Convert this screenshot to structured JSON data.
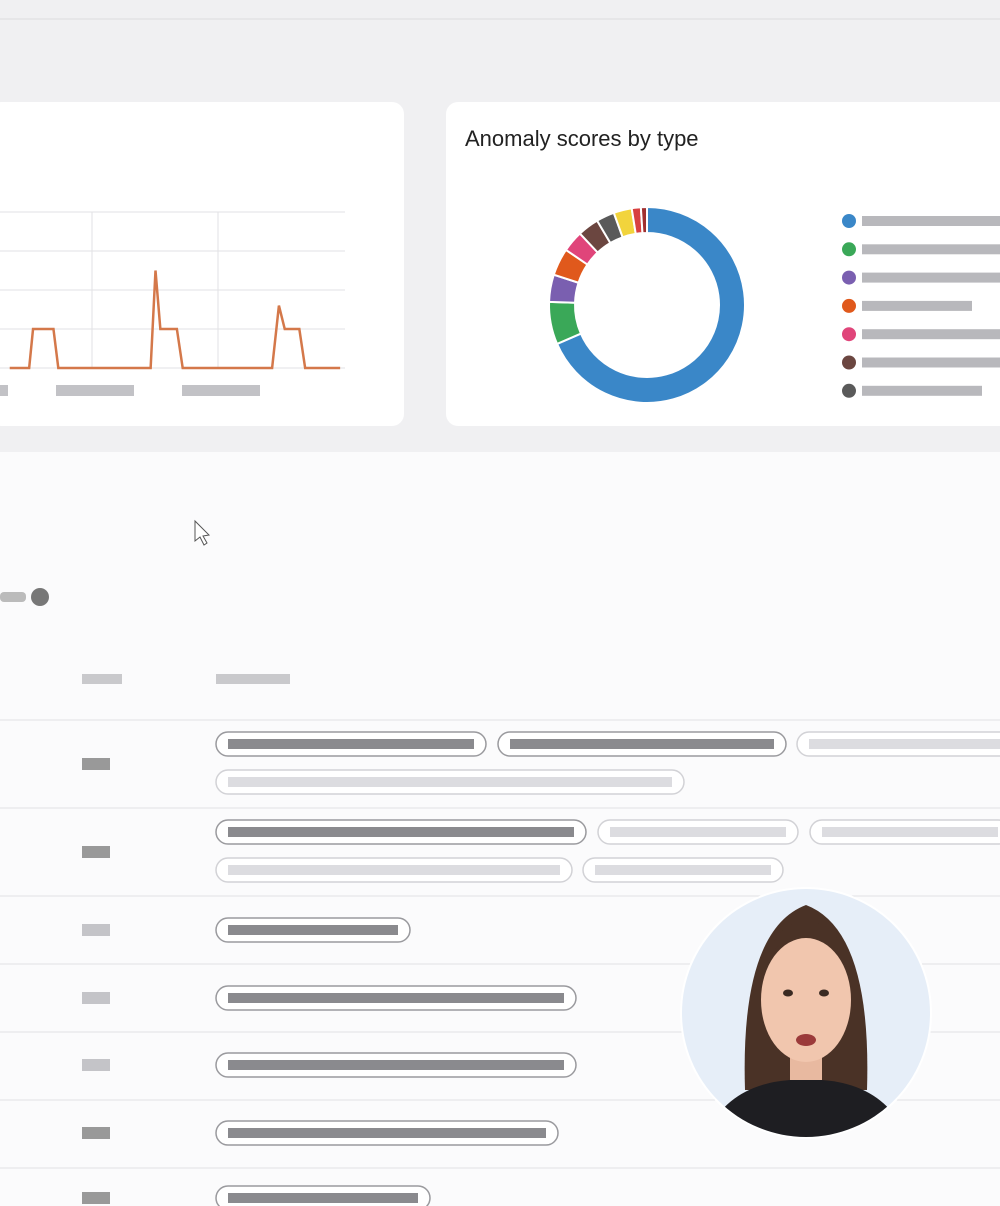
{
  "chart_data": [
    {
      "type": "line",
      "x": [
        0,
        20,
        24,
        45,
        50,
        145,
        150,
        155,
        172,
        178,
        270,
        277,
        283,
        298,
        304,
        340
      ],
      "xlim": [
        -10,
        345
      ],
      "ylim": [
        0,
        4
      ],
      "series": [
        {
          "color": "#d4784a",
          "values": [
            0,
            0,
            1,
            1,
            0,
            0,
            2.5,
            1,
            1,
            0,
            0,
            1.6,
            1,
            1,
            0,
            0
          ]
        }
      ]
    },
    {
      "type": "pie",
      "title": "Anomaly scores by type",
      "donut": true,
      "categories": [
        null,
        null,
        null,
        null,
        null,
        null,
        null,
        null,
        null,
        null
      ],
      "values": [
        68.5,
        7,
        4.5,
        4.5,
        3.5,
        3.5,
        3,
        3,
        1.5,
        1
      ],
      "colors": [
        "#3a87c8",
        "#3aa858",
        "#7a5fb0",
        "#e0591c",
        "#e0457a",
        "#6b4640",
        "#5a5a5a",
        "#f2d43c",
        "#d84040",
        "#a03030"
      ]
    }
  ]
}
